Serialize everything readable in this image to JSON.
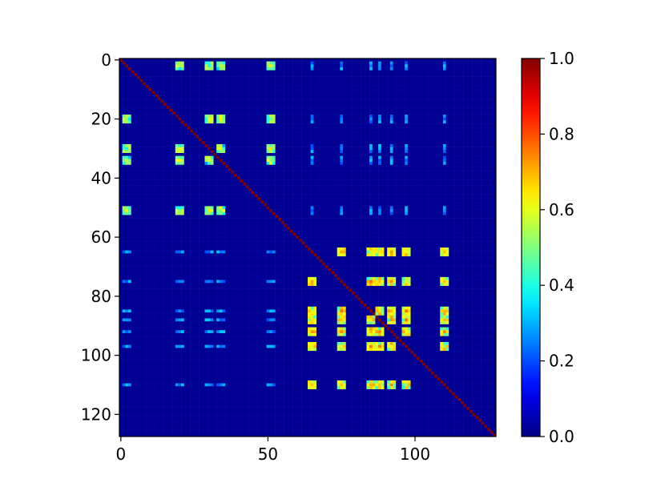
{
  "chart_data": {
    "type": "heatmap",
    "title": "",
    "xlabel": "",
    "ylabel": "",
    "matrix_size": 128,
    "xlim": [
      0,
      128
    ],
    "ylim": [
      128,
      0
    ],
    "x_ticks": [
      {
        "value": 0,
        "label": "0"
      },
      {
        "value": 50,
        "label": "50"
      },
      {
        "value": 100,
        "label": "100"
      }
    ],
    "y_ticks": [
      {
        "value": 0,
        "label": "0"
      },
      {
        "value": 20,
        "label": "20"
      },
      {
        "value": 40,
        "label": "40"
      },
      {
        "value": 60,
        "label": "60"
      },
      {
        "value": 80,
        "label": "80"
      },
      {
        "value": 100,
        "label": "100"
      },
      {
        "value": 120,
        "label": "120"
      }
    ],
    "colormap": "jet",
    "colorbar": {
      "range": [
        0.0,
        1.0
      ],
      "ticks": [
        {
          "value": 0.0,
          "label": "0.0"
        },
        {
          "value": 0.2,
          "label": "0.2"
        },
        {
          "value": 0.4,
          "label": "0.4"
        },
        {
          "value": 0.6,
          "label": "0.6"
        },
        {
          "value": 0.8,
          "label": "0.8"
        },
        {
          "value": 1.0,
          "label": "1.0"
        }
      ]
    },
    "diagonal_value": 1.0,
    "background_value": 0.02,
    "group_a_indices": [
      2,
      20,
      30,
      34,
      51
    ],
    "group_b_indices": [
      65,
      75,
      85,
      88,
      92,
      97,
      110
    ],
    "group_a_correlation": 0.52,
    "group_b_correlation": 0.62,
    "cross_group_correlation": 0.33
  }
}
